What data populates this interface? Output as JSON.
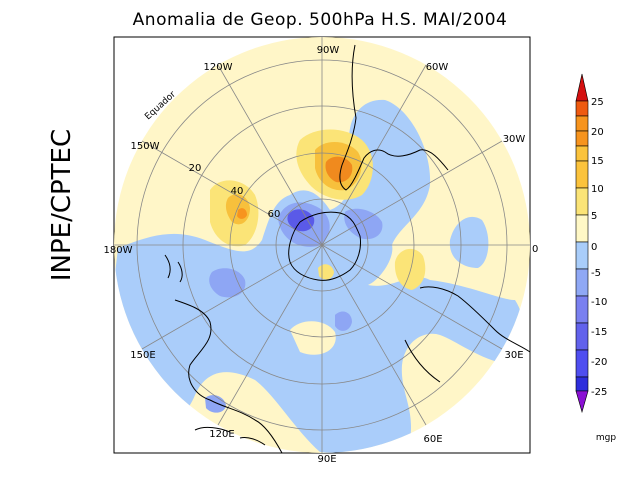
{
  "title": "Anomalia de Geop. 500hPa H.S. MAI/2004",
  "institution": "INPE/CPTEC",
  "map": {
    "longitude_labels": [
      "90W",
      "60W",
      "30W",
      "0",
      "30E",
      "60E",
      "90E",
      "120E",
      "150E",
      "180W",
      "150W",
      "120W"
    ],
    "latitude_labels": [
      "20",
      "40",
      "60"
    ],
    "equator_label": "Equador"
  },
  "colorbar": {
    "unit": "mgp",
    "ticks": [
      "25",
      "20",
      "15",
      "10",
      "5",
      "0",
      "-5",
      "-10",
      "-15",
      "-20",
      "-25"
    ],
    "colors": [
      "#d41010",
      "#ef5a10",
      "#f7941e",
      "#fbc33c",
      "#fbe477",
      "#fff8c6",
      "#a9cdfa",
      "#8fa8f5",
      "#7a80f0",
      "#4f4ef0",
      "#2e2edc",
      "#8a10d4"
    ]
  },
  "colors": {
    "background": "#fff6c8",
    "negative_light": "#aacdfa",
    "negative_mid": "#8ea6f4",
    "negative_dark": "#5a5ae8",
    "positive_light": "#fbe477",
    "positive_mid": "#f7c03c",
    "positive_dark": "#f08a1e"
  }
}
